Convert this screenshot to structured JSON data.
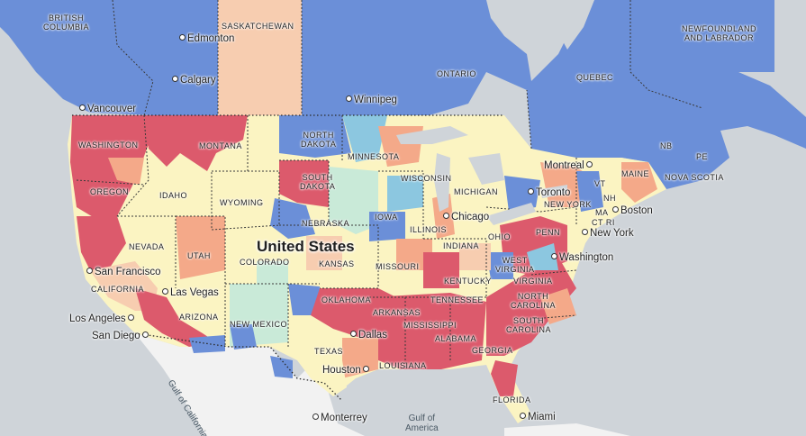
{
  "map": {
    "country_label": "United States",
    "regions": [
      {
        "key": "british-columbia",
        "text": "BRITISH\nCOLUMBIA"
      },
      {
        "key": "saskatchewan",
        "text": "SASKATCHEWAN"
      },
      {
        "key": "ontario",
        "text": "ONTARIO"
      },
      {
        "key": "quebec",
        "text": "QUEBEC"
      },
      {
        "key": "newfoundland-and-labrador",
        "text": "NEWFOUNDLAND\nAND LABRADOR"
      },
      {
        "key": "nb",
        "text": "NB"
      },
      {
        "key": "pe",
        "text": "PE"
      },
      {
        "key": "nova-scotia",
        "text": "NOVA SCOTIA"
      },
      {
        "key": "washington",
        "text": "WASHINGTON"
      },
      {
        "key": "montana",
        "text": "MONTANA"
      },
      {
        "key": "north-dakota",
        "text": "NORTH\nDAKOTA"
      },
      {
        "key": "minnesota",
        "text": "MINNESOTA"
      },
      {
        "key": "oregon",
        "text": "OREGON"
      },
      {
        "key": "idaho",
        "text": "IDAHO"
      },
      {
        "key": "wyoming",
        "text": "WYOMING"
      },
      {
        "key": "south-dakota",
        "text": "SOUTH\nDAKOTA"
      },
      {
        "key": "wisconsin",
        "text": "WISCONSIN"
      },
      {
        "key": "michigan",
        "text": "MICHIGAN"
      },
      {
        "key": "maine",
        "text": "MAINE"
      },
      {
        "key": "vt",
        "text": "VT"
      },
      {
        "key": "nh",
        "text": "NH"
      },
      {
        "key": "new-york",
        "text": "NEW YORK"
      },
      {
        "key": "ma",
        "text": "MA"
      },
      {
        "key": "ct-ri",
        "text": "CT RI"
      },
      {
        "key": "nebraska",
        "text": "NEBRASKA"
      },
      {
        "key": "iowa",
        "text": "IOWA"
      },
      {
        "key": "illinois",
        "text": "ILLINOIS"
      },
      {
        "key": "indiana",
        "text": "INDIANA"
      },
      {
        "key": "ohio",
        "text": "OHIO"
      },
      {
        "key": "penn",
        "text": "PENN"
      },
      {
        "key": "nevada",
        "text": "NEVADA"
      },
      {
        "key": "utah",
        "text": "UTAH"
      },
      {
        "key": "colorado",
        "text": "COLORADO"
      },
      {
        "key": "kansas",
        "text": "KANSAS"
      },
      {
        "key": "missouri",
        "text": "MISSOURI"
      },
      {
        "key": "west-virginia",
        "text": "WEST\nVIRGINIA"
      },
      {
        "key": "kentucky",
        "text": "KENTUCKY"
      },
      {
        "key": "virginia",
        "text": "VIRGINIA"
      },
      {
        "key": "california",
        "text": "CALIFORNIA"
      },
      {
        "key": "tennessee",
        "text": "TENNESSEE"
      },
      {
        "key": "north-carolina",
        "text": "NORTH\nCAROLINA"
      },
      {
        "key": "oklahoma",
        "text": "OKLAHOMA"
      },
      {
        "key": "arkansas",
        "text": "ARKANSAS"
      },
      {
        "key": "arizona",
        "text": "ARIZONA"
      },
      {
        "key": "new-mexico",
        "text": "NEW MEXICO"
      },
      {
        "key": "mississippi",
        "text": "MISSISSIPPI"
      },
      {
        "key": "south-carolina",
        "text": "SOUTH\nCAROLINA"
      },
      {
        "key": "alabama",
        "text": "ALABAMA"
      },
      {
        "key": "georgia",
        "text": "GEORGIA"
      },
      {
        "key": "texas",
        "text": "TEXAS"
      },
      {
        "key": "louisiana",
        "text": "LOUISIANA"
      },
      {
        "key": "florida",
        "text": "FLORIDA"
      }
    ],
    "cities": [
      {
        "key": "edmonton",
        "text": "Edmonton"
      },
      {
        "key": "calgary",
        "text": "Calgary"
      },
      {
        "key": "winnipeg",
        "text": "Winnipeg"
      },
      {
        "key": "vancouver",
        "text": "Vancouver"
      },
      {
        "key": "montreal",
        "text": "Montreal"
      },
      {
        "key": "toronto",
        "text": "Toronto"
      },
      {
        "key": "boston",
        "text": "Boston"
      },
      {
        "key": "chicago",
        "text": "Chicago"
      },
      {
        "key": "new-york",
        "text": "New York"
      },
      {
        "key": "washington",
        "text": "Washington"
      },
      {
        "key": "san-francisco",
        "text": "San Francisco"
      },
      {
        "key": "las-vegas",
        "text": "Las Vegas"
      },
      {
        "key": "los-angeles",
        "text": "Los Angeles"
      },
      {
        "key": "san-diego",
        "text": "San Diego"
      },
      {
        "key": "dallas",
        "text": "Dallas"
      },
      {
        "key": "houston",
        "text": "Houston"
      },
      {
        "key": "monterrey",
        "text": "Monterrey"
      },
      {
        "key": "miami",
        "text": "Miami"
      }
    ],
    "water": [
      {
        "key": "gulf-of-california",
        "text": "Gulf of California"
      },
      {
        "key": "gulf-of-america",
        "text": "Gulf of\nAmerica"
      }
    ],
    "colors": {
      "water": "#cfd4d9",
      "mexico": "#f2f2f2",
      "blue": "#6b8fd8",
      "light_blue": "#8cc7e0",
      "red": "#dc5a6c",
      "salmon": "#f4a989",
      "peach": "#f7cdb0",
      "cream": "#fbf4c2",
      "mint": "#c9ead8",
      "border": "#3a3a3a"
    }
  }
}
